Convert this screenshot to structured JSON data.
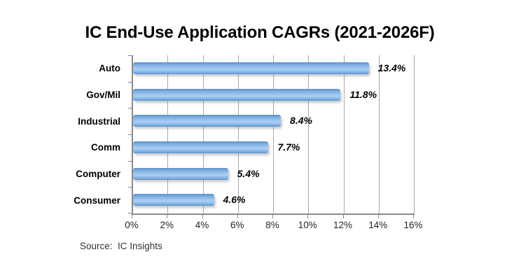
{
  "title": "IC End-Use Application CAGRs (2021-2026F)",
  "source": "Source:  IC Insights",
  "chart_data": {
    "type": "bar",
    "orientation": "horizontal",
    "title": "IC End-Use Application CAGRs (2021-2026F)",
    "categories": [
      "Auto",
      "Gov/Mil",
      "Industrial",
      "Comm",
      "Computer",
      "Consumer"
    ],
    "values": [
      13.4,
      11.8,
      8.4,
      7.7,
      5.4,
      4.6
    ],
    "value_labels": [
      "13.4%",
      "11.8%",
      "8.4%",
      "7.7%",
      "5.4%",
      "4.6%"
    ],
    "xlabel": "",
    "ylabel": "",
    "xlim": [
      0,
      16
    ],
    "x_tick_values": [
      0,
      2,
      4,
      6,
      8,
      10,
      12,
      14,
      16
    ],
    "x_tick_labels": [
      "0%",
      "2%",
      "4%",
      "6%",
      "8%",
      "10%",
      "12%",
      "14%",
      "16%"
    ],
    "grid": true,
    "legend": false,
    "bar_color": "#7FB2E5",
    "bar_gradient_edge": "#5890CB",
    "bar_gradient_center": "#A9CFF3",
    "gridline_color": "#A9A9A9",
    "axis_color": "#8A8A8A",
    "value_label_style": "bold-italic",
    "source_note": "Source:  IC Insights"
  }
}
